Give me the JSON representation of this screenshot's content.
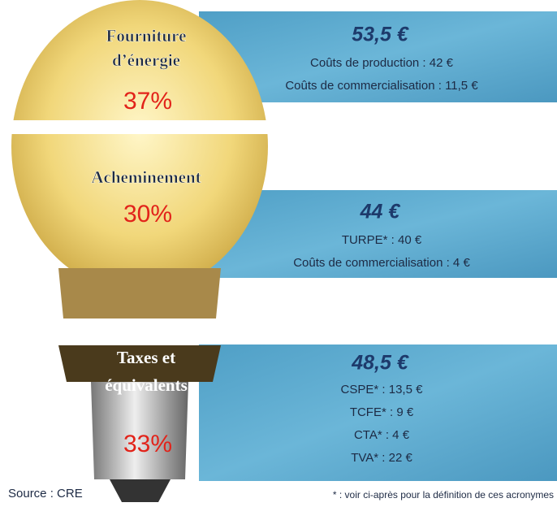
{
  "sections": [
    {
      "label_lines": [
        "Fourniture",
        "d’énergie"
      ],
      "share": "37%",
      "total": "53,5 €",
      "items": [
        "Coûts de production : 42 €",
        "Coûts de commercialisation : 11,5 €"
      ]
    },
    {
      "label_lines": [
        "Acheminement"
      ],
      "share": "30%",
      "total": "44 €",
      "items": [
        "TURPE* : 40 €",
        "Coûts de commercialisation : 4 €"
      ]
    },
    {
      "label_lines": [
        "Taxes et",
        "équivalents"
      ],
      "share": "33%",
      "total": "48,5 €",
      "items": [
        "CSPE* : 13,5 €",
        "TCFE* : 9 €",
        "CTA* : 4 €",
        "TVA* : 22 €"
      ]
    }
  ],
  "source": "Source : CRE",
  "footnote": "* : voir ci-après pour la définition de ces acronymes"
}
